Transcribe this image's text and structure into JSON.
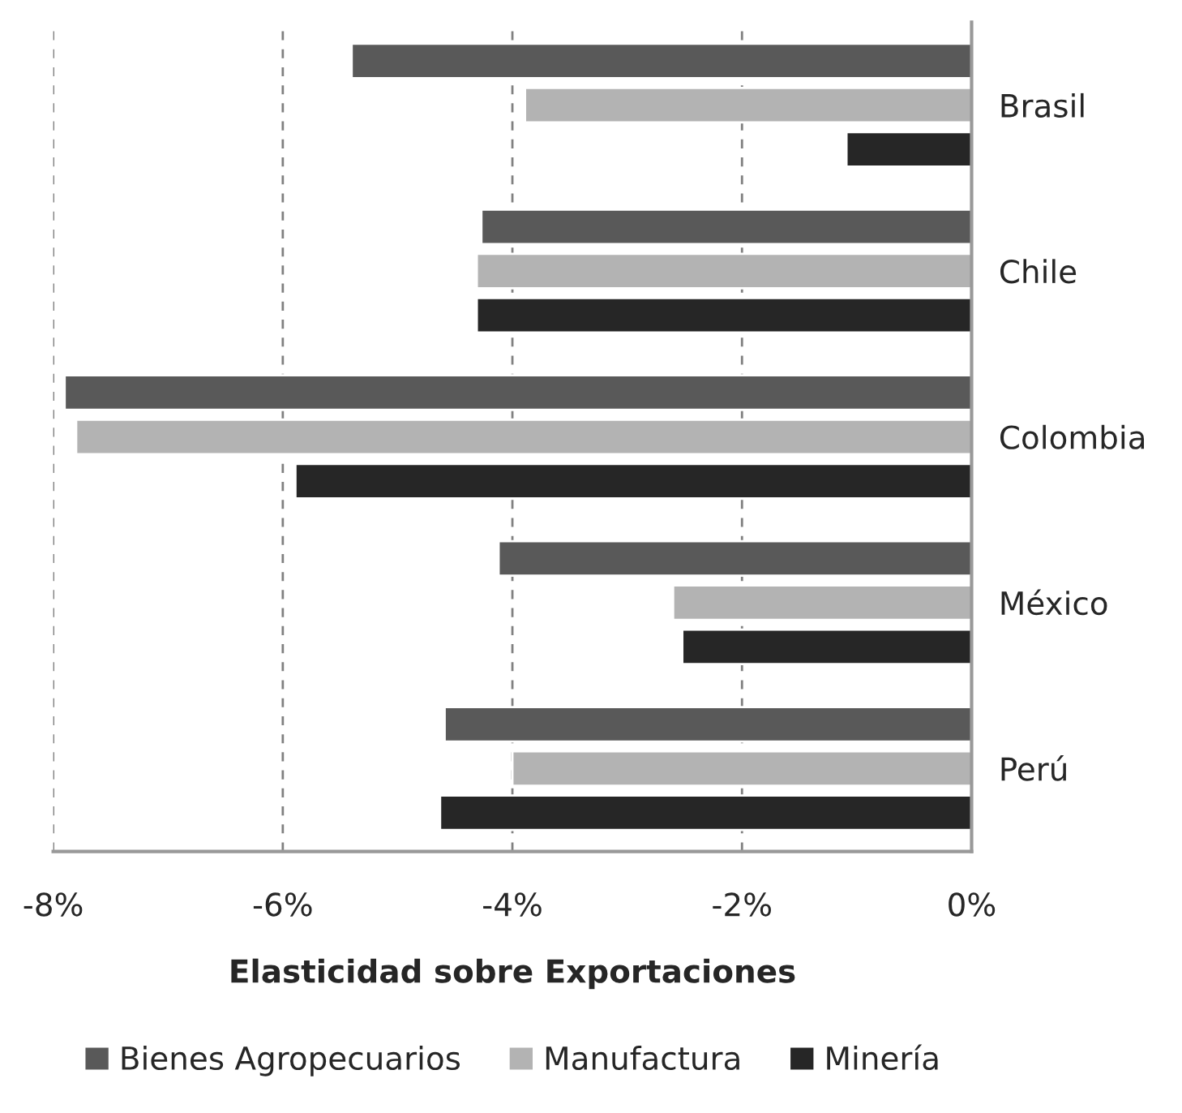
{
  "chart_data": {
    "type": "bar",
    "orientation": "horizontal",
    "xlabel": "Elasticidad sobre Exportaciones",
    "categories": [
      "Brasil",
      "Chile",
      "Colombia",
      "México",
      "Perú"
    ],
    "series": [
      {
        "name": "Bienes Agropecuarios",
        "color": "#595959",
        "values": [
          -5.4,
          -4.27,
          -7.9,
          -4.12,
          -4.59
        ]
      },
      {
        "name": "Manufactura",
        "color": "#b3b3b3",
        "values": [
          -3.89,
          -4.31,
          -7.8,
          -2.6,
          -4.0
        ]
      },
      {
        "name": "Minería",
        "color": "#262626",
        "values": [
          -1.09,
          -4.31,
          -5.89,
          -2.52,
          -4.63
        ]
      }
    ],
    "xlim": [
      -8,
      0
    ],
    "xticks": [
      {
        "value": -8,
        "label": "-8%"
      },
      {
        "value": -6,
        "label": "-6%"
      },
      {
        "value": -4,
        "label": "-4%"
      },
      {
        "value": -2,
        "label": "-2%"
      },
      {
        "value": 0,
        "label": "0%"
      }
    ],
    "grid": "x",
    "legend": "bottom"
  }
}
